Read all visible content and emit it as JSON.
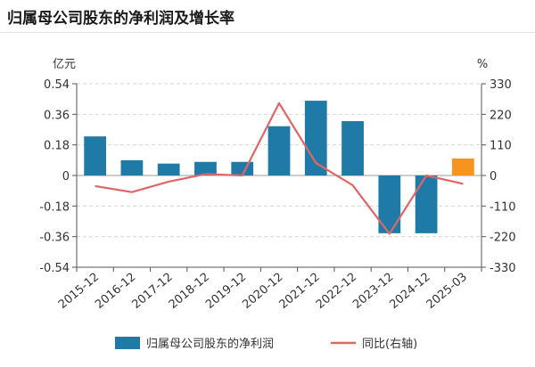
{
  "header": {
    "title": "归属母公司股东的净利润及增长率"
  },
  "chart_data": {
    "type": "bar",
    "title": "归属母公司股东的净利润及增长率",
    "categories": [
      "2015-12",
      "2016-12",
      "2017-12",
      "2018-12",
      "2019-12",
      "2020-12",
      "2021-12",
      "2022-12",
      "2023-12",
      "2024-12",
      "2025-03"
    ],
    "left_unit": "亿元",
    "right_unit": "%",
    "left_ticks": [
      "0.54",
      "0.36",
      "0.18",
      "0",
      "-0.18",
      "-0.36",
      "-0.54"
    ],
    "right_ticks": [
      "330",
      "220",
      "110",
      "0",
      "-110",
      "-220",
      "-330"
    ],
    "ylim_left": [
      -0.54,
      0.54
    ],
    "ylim_right": [
      -330,
      330
    ],
    "grid": true,
    "legend_position": "bottom",
    "series": [
      {
        "name": "归属母公司股东的净利润",
        "type": "bar",
        "axis": "left",
        "values": [
          0.23,
          0.09,
          0.07,
          0.08,
          0.08,
          0.29,
          0.44,
          0.32,
          -0.34,
          -0.34,
          0.1
        ],
        "color": "#1f7aa8",
        "highlight_last_color": "#f7941d"
      },
      {
        "name": "同比(右轴)",
        "type": "line",
        "axis": "right",
        "values": [
          -38,
          -60,
          -22,
          5,
          0,
          260,
          45,
          -35,
          -210,
          0,
          -30
        ],
        "color": "#e06666"
      }
    ]
  }
}
